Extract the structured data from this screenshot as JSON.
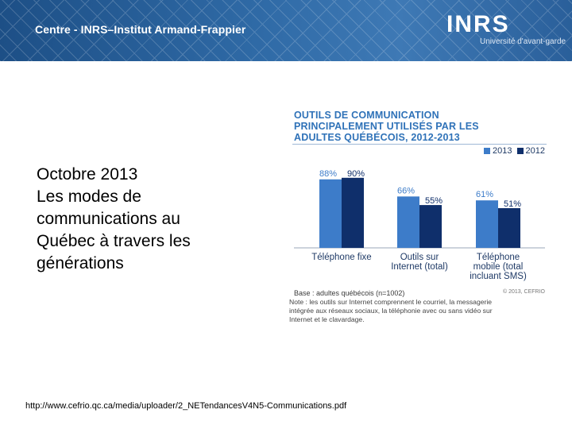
{
  "banner": {
    "title": "Centre - INRS–Institut Armand-Frappier",
    "logo_text": "INRS",
    "logo_tagline": "Université d'avant-garde"
  },
  "slide": {
    "lines": [
      "Octobre 2013",
      "Les modes de",
      "communications au",
      "Québec à travers les",
      "générations"
    ],
    "source_url": "http://www.cefrio.qc.ca/media/uploader/2_NETendancesV4N5-Communications.pdf"
  },
  "figure": {
    "title_lines": [
      "OUTILS DE COMMUNICATION",
      "PRINCIPALEMENT UTILISÉS PAR LES",
      "ADULTES QUÉBÉCOIS, 2012-2013"
    ],
    "base_note": "Base : adultes québécois (n=1002)",
    "copyright": "© 2013, CEFRIO",
    "note_lines": [
      "Note : les outils sur Internet comprennent le courriel, la messagerie",
      "intégrée aux réseaux sociaux, la téléphonie avec ou sans vidéo sur",
      "Internet et le clavardage."
    ]
  },
  "chart_data": {
    "type": "bar",
    "title": "Outils de communication principalement utilisés par les adultes québécois, 2012-2013",
    "categories": [
      [
        "Téléphone fixe"
      ],
      [
        "Outils sur",
        "Internet (total)"
      ],
      [
        "Téléphone",
        "mobile (total",
        "incluant SMS)"
      ]
    ],
    "series": [
      {
        "name": "2013",
        "values": [
          88,
          66,
          61
        ],
        "labels": [
          "88%",
          "66%",
          "61%"
        ],
        "color": "#3d7cc9"
      },
      {
        "name": "2012",
        "values": [
          90,
          55,
          51
        ],
        "labels": [
          "90%",
          "55%",
          "51%"
        ],
        "color": "#0f2f6b"
      }
    ],
    "ylim": [
      0,
      100
    ],
    "xlabel": "",
    "ylabel": "",
    "legend_position": "top-right"
  }
}
